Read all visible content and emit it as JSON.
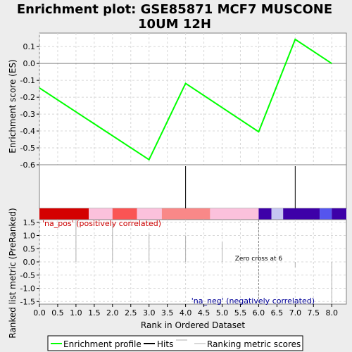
{
  "title_line1": "Enrichment plot: GSE85871 MCF7 MUSCONE",
  "title_line2": "10UM 12H",
  "colors": {
    "background": "#ededed",
    "panel": "#ffffff",
    "es_line": "#00ff00",
    "grid": "#d8d8d8",
    "hits": "#000000",
    "metric": "#b0b0b0",
    "pos_label": "#cc0000",
    "neg_label": "#000099"
  },
  "chart_data": [
    {
      "type": "line",
      "panel": "enrichment-score",
      "ylabel": "Enrichment score (ES)",
      "ylim": [
        -0.6,
        0.18
      ],
      "yticks": [
        0.1,
        0.0,
        -0.1,
        -0.2,
        -0.3,
        -0.4,
        -0.5,
        -0.6
      ],
      "ytick_labels": [
        "0.1",
        "0.0",
        "-0.1",
        "-0.2",
        "-0.3",
        "-0.4",
        "-0.5",
        "-0.6"
      ],
      "grid": true,
      "series": [
        {
          "name": "Enrichment profile",
          "x": [
            0,
            3,
            4,
            6,
            7,
            8
          ],
          "y": [
            -0.145,
            -0.57,
            -0.118,
            -0.405,
            0.143,
            0.0
          ]
        }
      ]
    },
    {
      "type": "hits",
      "panel": "hits",
      "hit_positions": [
        4,
        7
      ],
      "color_bar": [
        {
          "from": 0.0,
          "to": 1.35,
          "color": "#d40000"
        },
        {
          "from": 1.35,
          "to": 2.0,
          "color": "#fbc1dc"
        },
        {
          "from": 2.0,
          "to": 2.67,
          "color": "#fa5454"
        },
        {
          "from": 2.67,
          "to": 3.35,
          "color": "#fbc1dc"
        },
        {
          "from": 3.35,
          "to": 4.67,
          "color": "#f98888"
        },
        {
          "from": 4.67,
          "to": 6.0,
          "color": "#fbc1dc"
        },
        {
          "from": 6.0,
          "to": 6.35,
          "color": "#3d00a8"
        },
        {
          "from": 6.35,
          "to": 6.67,
          "color": "#c6c6f2"
        },
        {
          "from": 6.67,
          "to": 7.67,
          "color": "#3d00a8"
        },
        {
          "from": 7.67,
          "to": 8.0,
          "color": "#5555ee"
        },
        {
          "from": 8.0,
          "to": 8.4,
          "color": "#3d00a8"
        }
      ]
    },
    {
      "type": "bar",
      "panel": "ranked-metric",
      "xlabel": "Rank in Ordered Dataset",
      "ylabel": "Ranked list metric (PreRanked)",
      "xlim": [
        0,
        8.4
      ],
      "xticks": [
        0.0,
        0.5,
        1.0,
        1.5,
        2.0,
        2.5,
        3.0,
        3.5,
        4.0,
        4.5,
        5.0,
        5.5,
        6.0,
        6.5,
        7.0,
        7.5,
        8.0
      ],
      "xtick_labels": [
        "0.0",
        "0.5",
        "1.0",
        "1.5",
        "2.0",
        "2.5",
        "3.0",
        "3.5",
        "4.0",
        "4.5",
        "5.0",
        "5.5",
        "6.0",
        "6.5",
        "7.0",
        "7.5",
        "8.0"
      ],
      "ylim": [
        -1.6,
        1.6
      ],
      "yticks": [
        1.5,
        1.0,
        0.5,
        0.0,
        -0.5,
        -1.0,
        -1.5
      ],
      "ytick_labels": [
        "1.5",
        "1.0",
        "0.5",
        "0.0",
        "-0.5",
        "-1.0",
        "-1.5"
      ],
      "x": [
        1,
        2,
        3,
        4,
        5,
        7,
        8
      ],
      "values": [
        1.6,
        1.45,
        1.05,
        1.0,
        0.75,
        -0.2,
        -1.6
      ],
      "zero_cross": 6,
      "zero_cross_label": "Zero cross at 6",
      "pos_label": "'na_pos' (positively correlated)",
      "neg_label": "'na_neg' (negatively correlated)"
    }
  ],
  "legend": {
    "items": [
      {
        "label": "Enrichment profile",
        "kind": "es"
      },
      {
        "label": "Hits",
        "kind": "hits"
      },
      {
        "label": "Ranking metric scores",
        "kind": "metric"
      }
    ]
  }
}
